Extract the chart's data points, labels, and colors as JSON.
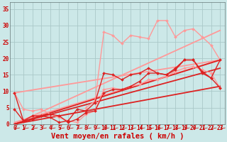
{
  "background_color": "#cce8e8",
  "grid_color": "#aac8c8",
  "text_color": "#cc0000",
  "xlabel": "Vent moyen/en rafales ( km/h )",
  "xlim": [
    -0.5,
    23.5
  ],
  "ylim": [
    0,
    37
  ],
  "yticks": [
    0,
    5,
    10,
    15,
    20,
    25,
    30,
    35
  ],
  "xticks": [
    0,
    1,
    2,
    3,
    4,
    5,
    6,
    7,
    8,
    9,
    10,
    11,
    12,
    13,
    14,
    15,
    16,
    17,
    18,
    19,
    20,
    21,
    22,
    23
  ],
  "lines": [
    {
      "x": [
        0,
        1,
        2,
        3,
        4,
        5,
        6,
        7,
        8,
        9,
        10,
        11,
        12,
        13,
        14,
        15,
        16,
        17,
        18,
        19,
        20,
        21,
        22,
        23
      ],
      "y": [
        9.5,
        1.0,
        1.5,
        2.5,
        2.0,
        0.5,
        1.0,
        4.5,
        4.0,
        6.5,
        15.5,
        15.0,
        13.5,
        15.0,
        15.5,
        17.0,
        15.5,
        15.0,
        17.0,
        19.5,
        19.5,
        16.0,
        14.0,
        11.0
      ],
      "color": "#dd2222",
      "lw": 1.0,
      "marker": "D",
      "ms": 2.0,
      "zorder": 5
    },
    {
      "x": [
        0,
        1,
        2,
        3,
        4,
        5,
        6,
        7,
        8,
        9,
        10,
        11,
        12,
        13,
        14,
        15,
        16,
        17,
        18,
        19,
        20,
        21,
        22,
        23
      ],
      "y": [
        4.5,
        1.0,
        2.5,
        2.5,
        3.0,
        2.5,
        0.5,
        1.5,
        3.5,
        4.0,
        9.5,
        10.5,
        10.5,
        11.5,
        13.0,
        15.5,
        15.5,
        15.0,
        16.5,
        19.5,
        19.5,
        15.5,
        14.0,
        19.5
      ],
      "color": "#dd2222",
      "lw": 1.0,
      "marker": "D",
      "ms": 2.0,
      "zorder": 5
    },
    {
      "x": [
        0,
        1,
        2,
        3,
        4,
        5,
        6,
        7,
        8,
        9,
        10,
        11,
        12,
        13,
        14,
        15,
        16,
        17,
        18,
        19,
        20,
        21,
        22,
        23
      ],
      "y": [
        9.5,
        4.5,
        4.0,
        4.5,
        3.0,
        2.0,
        1.0,
        0.5,
        3.0,
        4.0,
        10.5,
        11.0,
        10.5,
        11.5,
        12.0,
        13.5,
        13.5,
        14.5,
        16.0,
        17.0,
        17.5,
        16.5,
        15.5,
        11.0
      ],
      "color": "#ff9999",
      "lw": 1.0,
      "marker": "D",
      "ms": 2.0,
      "zorder": 4
    },
    {
      "x": [
        8,
        9,
        10,
        11,
        12,
        13,
        14,
        15,
        16,
        17,
        18,
        19,
        20,
        21,
        22,
        23
      ],
      "y": [
        5.0,
        7.0,
        28.0,
        27.0,
        24.5,
        27.0,
        26.5,
        26.0,
        31.5,
        31.5,
        26.5,
        28.5,
        29.0,
        26.5,
        24.0,
        19.5
      ],
      "color": "#ff9999",
      "lw": 1.0,
      "marker": "D",
      "ms": 2.0,
      "zorder": 4
    },
    {
      "x": [
        0,
        23
      ],
      "y": [
        0.0,
        11.5
      ],
      "color": "#dd2222",
      "lw": 1.3,
      "marker": null,
      "ms": 0,
      "zorder": 3
    },
    {
      "x": [
        0,
        23
      ],
      "y": [
        0.0,
        17.0
      ],
      "color": "#dd2222",
      "lw": 1.3,
      "marker": null,
      "ms": 0,
      "zorder": 3
    },
    {
      "x": [
        0,
        23
      ],
      "y": [
        0.0,
        19.5
      ],
      "color": "#dd2222",
      "lw": 1.3,
      "marker": null,
      "ms": 0,
      "zorder": 3
    },
    {
      "x": [
        0,
        23
      ],
      "y": [
        0.5,
        19.5
      ],
      "color": "#ff9999",
      "lw": 1.3,
      "marker": null,
      "ms": 0,
      "zorder": 2
    },
    {
      "x": [
        0,
        23
      ],
      "y": [
        0.0,
        28.5
      ],
      "color": "#ff9999",
      "lw": 1.3,
      "marker": null,
      "ms": 0,
      "zorder": 2
    },
    {
      "x": [
        0,
        23
      ],
      "y": [
        9.5,
        19.5
      ],
      "color": "#ff9999",
      "lw": 1.3,
      "marker": null,
      "ms": 0,
      "zorder": 2
    }
  ],
  "tick_fontsize": 5.5,
  "label_fontsize": 7.5
}
